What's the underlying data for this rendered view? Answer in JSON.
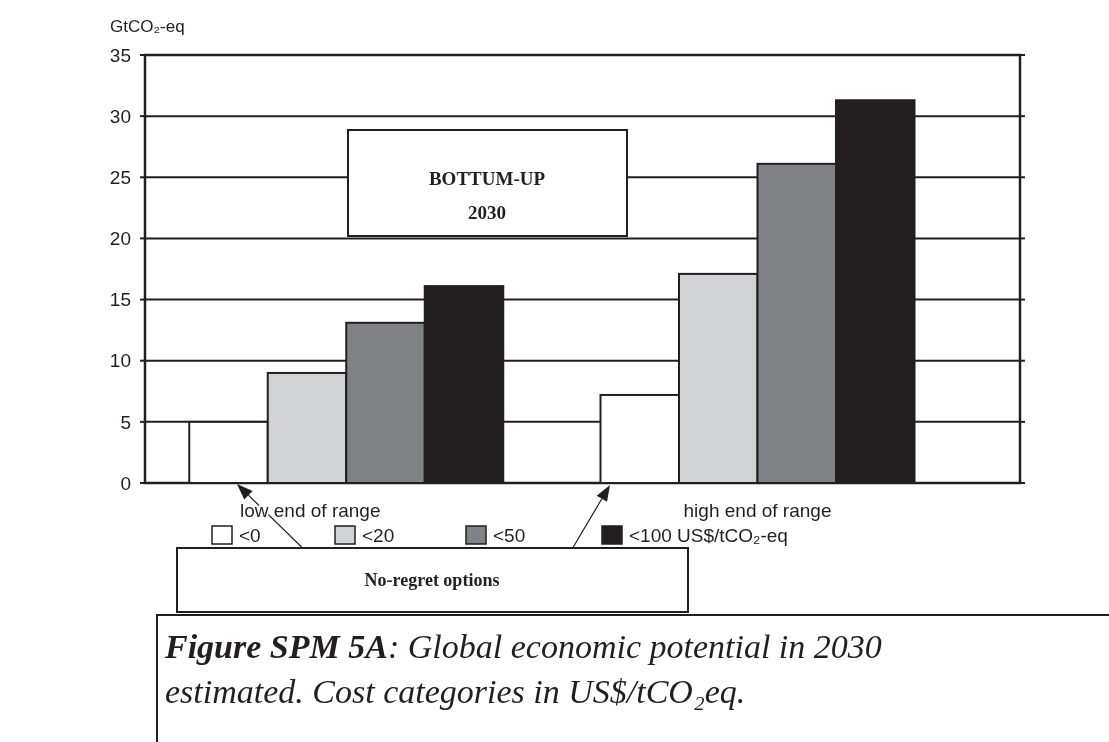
{
  "chart_data": {
    "type": "bar",
    "title": "BOTTUM-UP 2030",
    "ylabel": "GtCO₂-eq",
    "categories": [
      "low end of range",
      "high end of range"
    ],
    "series": [
      {
        "name": "<0",
        "color": "#ffffff",
        "values": [
          5.0,
          7.2
        ]
      },
      {
        "name": "<20",
        "color": "#d1d2d4",
        "values": [
          9.0,
          17.1
        ]
      },
      {
        "name": "<50",
        "color": "#808285",
        "values": [
          13.1,
          26.1
        ]
      },
      {
        "name": "<100 US$/tCO₂-eq",
        "color": "#231f20",
        "values": [
          16.1,
          31.3
        ]
      }
    ],
    "ylim": [
      0,
      35
    ],
    "yticks": [
      0,
      5,
      10,
      15,
      20,
      25,
      30,
      35
    ],
    "grid": "y",
    "legend": "bottom",
    "annotations": [
      "No-regret options",
      "Figure SPM 5A: Global economic potential in 2030 estimated. Cost categories in US$/tCO₂eq."
    ]
  }
}
